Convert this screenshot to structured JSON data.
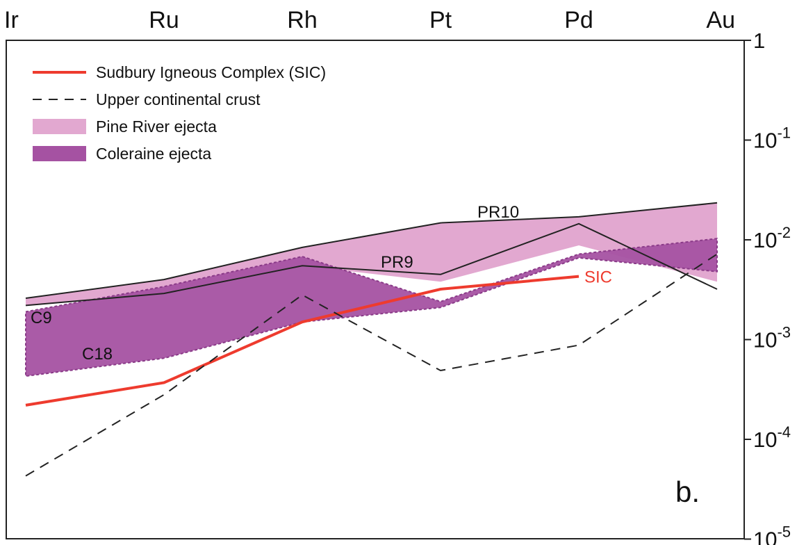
{
  "chart_data": {
    "type": "line",
    "panel_label": "b.",
    "categories": [
      "Ir",
      "Ru",
      "Rh",
      "Pt",
      "Pd",
      "Au"
    ],
    "y_scale": "log",
    "ylim": [
      1e-05,
      1
    ],
    "y_ticks": [
      {
        "value": 1,
        "base": "1",
        "exp": ""
      },
      {
        "value": 0.1,
        "base": "10",
        "exp": "-1"
      },
      {
        "value": 0.01,
        "base": "10",
        "exp": "-2"
      },
      {
        "value": 0.001,
        "base": "10",
        "exp": "-3"
      },
      {
        "value": 0.0001,
        "base": "10",
        "exp": "-4"
      },
      {
        "value": 1e-05,
        "base": "10",
        "exp": "-5"
      }
    ],
    "legend": [
      {
        "label": "Sudbury Igneous Complex (SIC)",
        "kind": "line",
        "color": "#ee3b2e"
      },
      {
        "label": "Upper continental crust",
        "kind": "dashed",
        "color": "#222222"
      },
      {
        "label": "Pine River ejecta",
        "kind": "fill",
        "color": "#e2a8d0"
      },
      {
        "label": "Coleraine ejecta",
        "kind": "fill",
        "color": "#a552a2"
      }
    ],
    "series": [
      {
        "name": "Sudbury Igneous Complex (SIC)",
        "label": "SIC",
        "style": "solid",
        "color": "#ee3b2e",
        "values": [
          0.00022,
          0.00037,
          0.0015,
          0.0032,
          0.0043,
          null
        ]
      },
      {
        "name": "Upper continental crust",
        "style": "dashed",
        "color": "#222222",
        "values": [
          4.3e-05,
          0.00028,
          0.0028,
          0.00049,
          0.00088,
          0.0072
        ]
      },
      {
        "name": "PR10",
        "label": "PR10",
        "style": "solid",
        "color": "#222222",
        "values": [
          0.0026,
          0.004,
          0.0084,
          0.0148,
          0.017,
          0.0235
        ]
      },
      {
        "name": "PR9",
        "label": "PR9",
        "style": "solid",
        "color": "#222222",
        "values": [
          0.0022,
          0.0029,
          0.0055,
          0.0045,
          0.0145,
          0.0032
        ]
      }
    ],
    "bands": [
      {
        "name": "Pine River ejecta",
        "color": "#e2a8d0",
        "upper": [
          0.0026,
          0.004,
          0.0084,
          0.0148,
          0.017,
          0.0235
        ],
        "lower": [
          0.0022,
          0.0029,
          0.0055,
          0.0038,
          0.0088,
          0.0038
        ]
      },
      {
        "name": "Coleraine ejecta",
        "color": "#a552a2",
        "upper": [
          0.0019,
          0.0034,
          0.0068,
          0.0024,
          0.0072,
          0.0103
        ],
        "lower": [
          0.00043,
          0.00065,
          0.0015,
          0.0021,
          0.0066,
          0.0048
        ]
      }
    ],
    "annotations": [
      {
        "text": "C9",
        "series": "Coleraine ejecta"
      },
      {
        "text": "C18",
        "series": "Coleraine ejecta"
      }
    ],
    "grid": false,
    "legend_position": "top-left"
  }
}
